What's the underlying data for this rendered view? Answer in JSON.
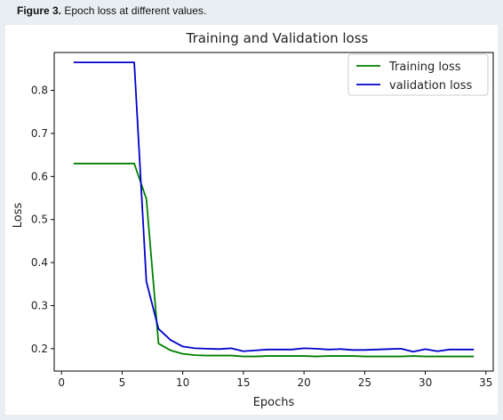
{
  "caption": {
    "label": "Figure 3.",
    "text": " Epoch loss at different values."
  },
  "chart_data": {
    "type": "line",
    "title": "Training and Validation loss",
    "xlabel": "Epochs",
    "ylabel": "Loss",
    "xlim": [
      -0.6,
      35.6
    ],
    "ylim": [
      0.148,
      0.888
    ],
    "xticks": [
      0,
      5,
      10,
      15,
      20,
      25,
      30,
      35
    ],
    "yticks": [
      0.2,
      0.3,
      0.4,
      0.5,
      0.6,
      0.7,
      0.8
    ],
    "legend_position": "top-right",
    "grid": false,
    "x": [
      1,
      2,
      3,
      4,
      5,
      6,
      7,
      8,
      9,
      10,
      11,
      12,
      13,
      14,
      15,
      16,
      17,
      18,
      19,
      20,
      21,
      22,
      23,
      24,
      25,
      26,
      27,
      28,
      29,
      30,
      31,
      32,
      33,
      34
    ],
    "series": [
      {
        "name": "Training loss",
        "color": "#008000",
        "values": [
          0.63,
          0.63,
          0.63,
          0.63,
          0.63,
          0.63,
          0.548,
          0.212,
          0.196,
          0.188,
          0.185,
          0.184,
          0.184,
          0.184,
          0.182,
          0.182,
          0.183,
          0.183,
          0.183,
          0.183,
          0.182,
          0.183,
          0.183,
          0.183,
          0.182,
          0.182,
          0.182,
          0.182,
          0.183,
          0.182,
          0.182,
          0.182,
          0.182,
          0.182
        ]
      },
      {
        "name": "validation loss",
        "color": "#0000cc",
        "values": [
          0.865,
          0.865,
          0.865,
          0.865,
          0.865,
          0.865,
          0.356,
          0.246,
          0.22,
          0.205,
          0.201,
          0.2,
          0.199,
          0.201,
          0.194,
          0.196,
          0.198,
          0.198,
          0.198,
          0.201,
          0.2,
          0.198,
          0.199,
          0.197,
          0.197,
          0.198,
          0.199,
          0.2,
          0.193,
          0.199,
          0.194,
          0.198,
          0.198,
          0.198
        ]
      }
    ]
  }
}
